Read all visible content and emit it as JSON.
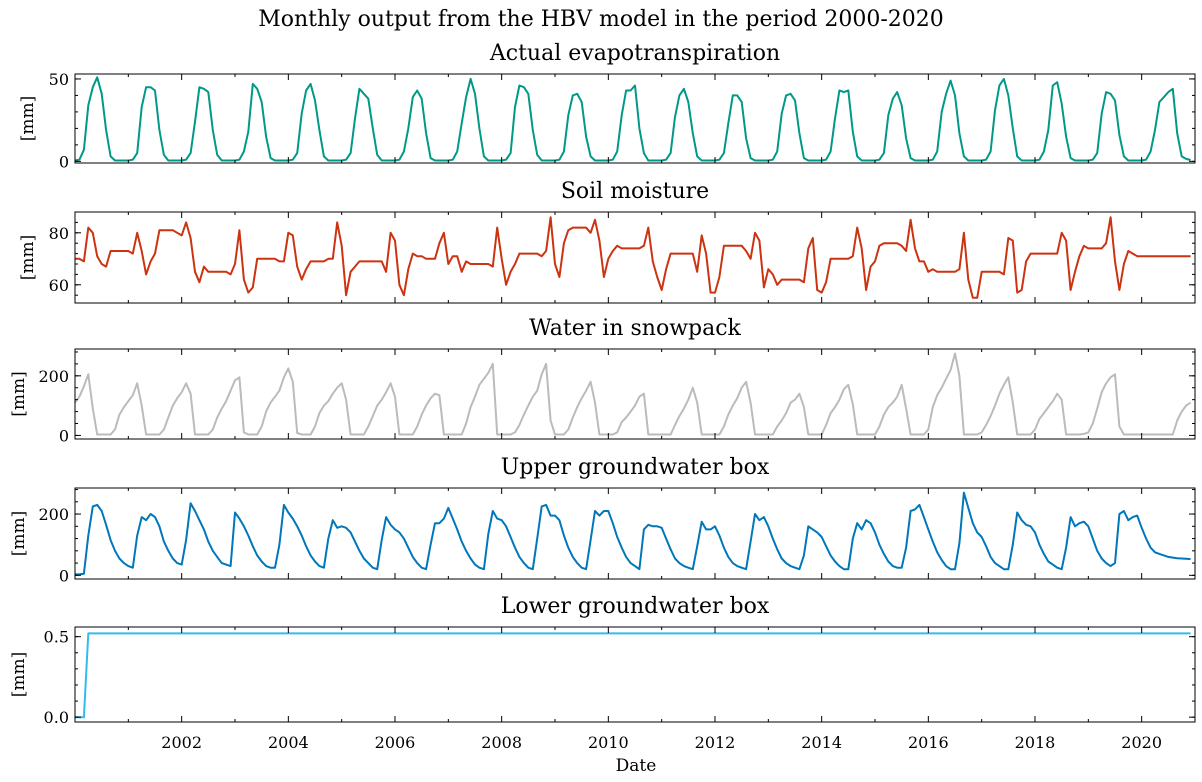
{
  "suptitle": "Monthly output from the HBV model in the period 2000-2020",
  "xlabel": "Date",
  "chart_data": [
    {
      "type": "line",
      "title": "Actual evapotranspiration",
      "ylabel": "[mm]",
      "ylim": [
        -1,
        53
      ],
      "yticks": [
        0,
        50
      ],
      "color": "#009988",
      "x": "monthly 2000-01 .. 2020-12",
      "values": [
        0.5,
        1,
        7,
        34,
        45,
        51,
        41,
        19,
        3,
        0.5,
        0.5,
        0.5,
        0.5,
        1,
        5,
        33,
        45,
        45,
        43,
        19,
        4,
        0.5,
        0.5,
        0.5,
        0.5,
        1,
        5,
        24,
        45,
        44,
        42,
        19,
        4,
        0.5,
        0.5,
        0.5,
        0.5,
        1,
        6,
        18,
        47,
        44,
        36,
        15,
        2,
        0.5,
        0.5,
        0.5,
        0.5,
        1,
        5,
        29,
        43,
        47,
        37,
        19,
        3,
        0.5,
        0.5,
        0.5,
        0.5,
        1,
        5,
        26,
        44,
        41,
        38,
        20,
        4,
        0.5,
        0.5,
        0.5,
        0.5,
        1,
        6,
        20,
        39,
        43,
        38,
        17,
        2,
        0.5,
        0.5,
        0.5,
        0.5,
        1,
        6,
        23,
        39,
        50,
        41,
        20,
        3,
        0.5,
        0.5,
        0.5,
        0.5,
        1,
        5,
        33,
        46,
        45,
        41,
        19,
        4,
        0.5,
        0.5,
        0.5,
        0.5,
        1,
        6,
        28,
        40,
        41,
        36,
        15,
        3,
        0.5,
        0.5,
        0.5,
        0.5,
        1,
        6,
        28,
        43,
        43,
        46,
        20,
        5,
        0.5,
        0.5,
        0.5,
        0.5,
        1,
        5,
        27,
        40,
        44,
        36,
        17,
        3,
        0.5,
        0.5,
        0.5,
        0.5,
        1,
        5,
        23,
        40,
        40,
        36,
        14,
        2,
        0.5,
        0.5,
        0.5,
        0.5,
        1,
        6,
        29,
        40,
        41,
        37,
        17,
        2,
        0.5,
        0.5,
        0.5,
        0.5,
        1,
        6,
        26,
        43,
        42,
        43,
        18,
        3,
        0.5,
        0.5,
        0.5,
        0.5,
        1,
        5,
        28,
        38,
        42,
        34,
        14,
        2,
        0.5,
        0.5,
        0.5,
        0.5,
        1,
        6,
        30,
        41,
        49,
        40,
        17,
        3,
        0.5,
        0.5,
        0.5,
        0.5,
        1,
        6,
        31,
        46,
        50,
        40,
        20,
        3,
        0.5,
        0.5,
        0.5,
        0.5,
        1,
        6,
        19,
        46,
        48,
        35,
        15,
        2,
        0.5,
        0.5,
        0.5,
        0.5,
        1,
        5,
        29,
        42,
        41,
        37,
        16,
        3,
        0.5,
        0.5,
        0.5,
        0.5,
        1,
        6,
        19,
        36,
        39,
        42,
        44,
        17,
        3,
        1.5,
        0.8
      ]
    },
    {
      "type": "line",
      "title": "Soil moisture",
      "ylabel": "[mm]",
      "ylim": [
        53,
        88
      ],
      "yticks": [
        60,
        80
      ],
      "color": "#cc3311",
      "x": "monthly 2000-01 .. 2020-12",
      "values": [
        70,
        70,
        69,
        82,
        80,
        71,
        68,
        67,
        73,
        73,
        73,
        73,
        73,
        72,
        80,
        73,
        64,
        69,
        72,
        81,
        81,
        81,
        81,
        80,
        79,
        84,
        78,
        65,
        61,
        67,
        65,
        65,
        65,
        65,
        65,
        64,
        68,
        81,
        62,
        57,
        59,
        70,
        70,
        70,
        70,
        70,
        69,
        69,
        80,
        79,
        67,
        62,
        66,
        69,
        69,
        69,
        69,
        70,
        70,
        84,
        75,
        56,
        65,
        67,
        69,
        69,
        69,
        69,
        69,
        69,
        65,
        80,
        77,
        60,
        56,
        66,
        72,
        71,
        71,
        70,
        70,
        70,
        76,
        80,
        68,
        71,
        71,
        65,
        69,
        68,
        68,
        68,
        68,
        68,
        67,
        82,
        70,
        60,
        65,
        68,
        72,
        72,
        72,
        72,
        72,
        71,
        73,
        86,
        68,
        63,
        76,
        81,
        82,
        82,
        82,
        82,
        80,
        85,
        77,
        63,
        70,
        73,
        75,
        74,
        74,
        74,
        74,
        74,
        75,
        82,
        69,
        63,
        58,
        66,
        72,
        72,
        72,
        72,
        72,
        72,
        65,
        79,
        72,
        57,
        57,
        63,
        75,
        75,
        75,
        75,
        75,
        73,
        70,
        80,
        77,
        59,
        66,
        64,
        60,
        62,
        62,
        62,
        62,
        62,
        61,
        74,
        78,
        58,
        57,
        61,
        70,
        70,
        70,
        70,
        70,
        71,
        82,
        74,
        58,
        67,
        69,
        75,
        76,
        76,
        76,
        76,
        75,
        73,
        85,
        74,
        69,
        69,
        65,
        66,
        65,
        65,
        65,
        65,
        65,
        66,
        80,
        62,
        55,
        55,
        65,
        65,
        65,
        65,
        65,
        64,
        78,
        77,
        57,
        58,
        69,
        72,
        72,
        72,
        72,
        72,
        72,
        72,
        80,
        77,
        58,
        65,
        71,
        75,
        74,
        74,
        74,
        74,
        76,
        86,
        69,
        58,
        68,
        73,
        72,
        71,
        71,
        71,
        71,
        71,
        71,
        71,
        71,
        71,
        71,
        71,
        71,
        71
      ]
    },
    {
      "type": "line",
      "title": "Water in snowpack",
      "ylabel": "[mm]",
      "ylim": [
        -12,
        290
      ],
      "yticks": [
        0,
        200
      ],
      "color": "#bbbbbb",
      "x": "monthly 2000-01 .. 2020-12",
      "values": [
        110,
        130,
        165,
        205,
        90,
        3,
        3,
        3,
        3,
        20,
        70,
        95,
        115,
        135,
        175,
        100,
        3,
        3,
        3,
        3,
        20,
        60,
        100,
        125,
        145,
        175,
        140,
        3,
        3,
        3,
        3,
        20,
        60,
        90,
        115,
        150,
        185,
        195,
        10,
        3,
        3,
        3,
        30,
        80,
        110,
        130,
        150,
        195,
        225,
        180,
        8,
        3,
        3,
        3,
        30,
        75,
        100,
        115,
        140,
        160,
        175,
        120,
        3,
        3,
        3,
        3,
        30,
        65,
        100,
        120,
        145,
        175,
        130,
        3,
        3,
        3,
        3,
        30,
        70,
        100,
        125,
        140,
        135,
        3,
        3,
        3,
        3,
        3,
        40,
        95,
        130,
        170,
        190,
        210,
        240,
        3,
        3,
        3,
        3,
        10,
        35,
        70,
        100,
        130,
        150,
        205,
        240,
        50,
        3,
        3,
        3,
        20,
        60,
        95,
        125,
        150,
        180,
        110,
        3,
        3,
        3,
        3,
        10,
        45,
        60,
        80,
        100,
        130,
        140,
        3,
        3,
        3,
        3,
        3,
        3,
        35,
        65,
        90,
        120,
        160,
        110,
        3,
        3,
        3,
        3,
        3,
        30,
        70,
        100,
        125,
        160,
        180,
        110,
        3,
        3,
        3,
        3,
        3,
        30,
        50,
        75,
        110,
        120,
        140,
        95,
        3,
        3,
        3,
        3,
        35,
        75,
        95,
        120,
        155,
        170,
        105,
        3,
        3,
        3,
        3,
        3,
        30,
        70,
        95,
        110,
        130,
        170,
        90,
        3,
        3,
        3,
        3,
        20,
        95,
        135,
        160,
        190,
        220,
        275,
        200,
        3,
        3,
        3,
        3,
        10,
        35,
        65,
        100,
        140,
        170,
        195,
        110,
        3,
        3,
        3,
        3,
        20,
        55,
        75,
        95,
        115,
        140,
        120,
        3,
        3,
        3,
        3,
        5,
        10,
        40,
        90,
        145,
        175,
        195,
        205,
        30,
        3,
        3,
        3,
        3,
        3,
        3,
        3,
        3,
        3,
        3,
        3,
        3,
        50,
        80,
        100,
        110
      ]
    },
    {
      "type": "line",
      "title": "Upper groundwater box",
      "ylabel": "[mm]",
      "ylim": [
        -12,
        285
      ],
      "yticks": [
        0,
        200
      ],
      "color": "#0077bb",
      "x": "monthly 2000-01 .. 2020-12",
      "values": [
        3,
        3,
        5,
        130,
        225,
        230,
        210,
        165,
        115,
        80,
        55,
        40,
        30,
        25,
        130,
        190,
        180,
        200,
        190,
        160,
        110,
        80,
        55,
        40,
        35,
        115,
        235,
        210,
        180,
        150,
        110,
        80,
        60,
        40,
        35,
        30,
        205,
        185,
        160,
        130,
        95,
        65,
        45,
        30,
        25,
        25,
        100,
        230,
        205,
        185,
        160,
        130,
        95,
        65,
        45,
        30,
        25,
        120,
        180,
        155,
        160,
        155,
        140,
        110,
        80,
        55,
        40,
        25,
        20,
        115,
        190,
        165,
        150,
        140,
        120,
        90,
        60,
        40,
        25,
        20,
        100,
        170,
        170,
        185,
        220,
        185,
        150,
        110,
        80,
        55,
        35,
        25,
        20,
        135,
        210,
        185,
        180,
        160,
        125,
        90,
        60,
        40,
        25,
        20,
        120,
        225,
        230,
        195,
        195,
        180,
        130,
        90,
        60,
        40,
        25,
        20,
        115,
        210,
        195,
        210,
        210,
        170,
        125,
        90,
        60,
        40,
        30,
        20,
        150,
        165,
        160,
        160,
        155,
        120,
        85,
        55,
        40,
        30,
        25,
        20,
        95,
        175,
        150,
        150,
        160,
        130,
        90,
        60,
        40,
        30,
        25,
        20,
        110,
        200,
        180,
        190,
        160,
        120,
        85,
        55,
        40,
        30,
        25,
        20,
        65,
        160,
        150,
        140,
        125,
        95,
        65,
        45,
        30,
        20,
        20,
        120,
        170,
        150,
        180,
        170,
        140,
        100,
        70,
        45,
        30,
        25,
        25,
        90,
        210,
        215,
        230,
        190,
        150,
        110,
        75,
        50,
        30,
        20,
        20,
        105,
        270,
        220,
        170,
        140,
        125,
        95,
        60,
        40,
        30,
        20,
        20,
        100,
        205,
        180,
        165,
        160,
        140,
        100,
        70,
        45,
        35,
        25,
        20,
        90,
        190,
        160,
        170,
        175,
        160,
        120,
        80,
        55,
        40,
        30,
        40,
        200,
        210,
        180,
        190,
        195,
        155,
        120,
        90,
        75,
        70,
        65,
        60,
        58,
        56,
        55,
        54,
        53
      ]
    },
    {
      "type": "line",
      "title": "Lower groundwater box",
      "ylabel": "[mm]",
      "ylim": [
        -0.03,
        0.56
      ],
      "yticks": [
        0.0,
        0.5
      ],
      "yticklabels": [
        "0.0",
        "0.5"
      ],
      "color": "#33bbee",
      "x": "monthly 2000-01 .. 2020-12",
      "values_note": "constant after March 2000",
      "values": [
        0,
        0,
        0,
        0.52
      ],
      "const_after": 0.52
    }
  ],
  "xticks": [
    "2002",
    "2004",
    "2006",
    "2008",
    "2010",
    "2012",
    "2014",
    "2016",
    "2018",
    "2020"
  ]
}
